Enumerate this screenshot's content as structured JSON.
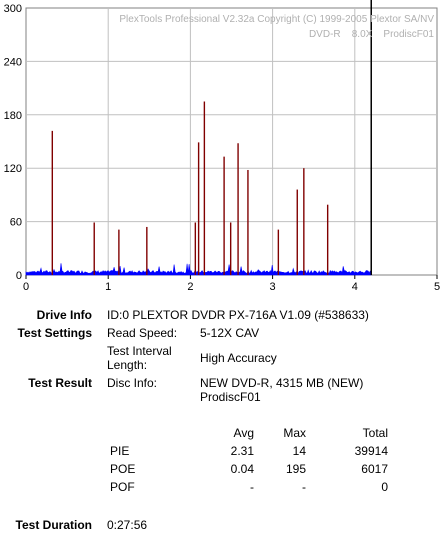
{
  "chart_data": {
    "type": "bar",
    "watermark_lines": [
      "PlexTools Professional V2.32a Copyright (C) 1999-2005 Plextor SA/NV",
      "DVD-R    8.0X    ProdiscF01"
    ],
    "x_ticks": [
      "0",
      "1",
      "2",
      "3",
      "4",
      "5"
    ],
    "y_ticks": [
      "0",
      "60",
      "120",
      "180",
      "240",
      "300"
    ],
    "xlim": [
      0,
      5
    ],
    "ylim": [
      0,
      300
    ],
    "grid": true,
    "end_marker_x": 4.2,
    "colors": {
      "pie": "#0000ff",
      "po": "#800000",
      "end_marker": "#000000",
      "grid": "#c0c0c0"
    },
    "po_spikes": [
      {
        "x": 0.32,
        "y": 162
      },
      {
        "x": 0.83,
        "y": 59
      },
      {
        "x": 1.13,
        "y": 51
      },
      {
        "x": 1.47,
        "y": 54
      },
      {
        "x": 2.06,
        "y": 59
      },
      {
        "x": 2.1,
        "y": 149
      },
      {
        "x": 2.17,
        "y": 195
      },
      {
        "x": 2.41,
        "y": 133
      },
      {
        "x": 2.49,
        "y": 59
      },
      {
        "x": 2.58,
        "y": 148
      },
      {
        "x": 2.7,
        "y": 118
      },
      {
        "x": 3.07,
        "y": 51
      },
      {
        "x": 3.3,
        "y": 96
      },
      {
        "x": 3.38,
        "y": 120
      },
      {
        "x": 3.67,
        "y": 79
      }
    ],
    "pie_avg": 2.31,
    "pie_max": 14
  },
  "info": {
    "drive_label": "Drive Info",
    "drive_value": "ID:0 PLEXTOR DVDR PX-716A V1.09 (#538633)",
    "settings_label": "Test Settings",
    "read_speed_key": "Read Speed:",
    "read_speed_value": "5-12X CAV",
    "interval_key_1": "Test Interval",
    "interval_key_2": "Length:",
    "interval_value": "High Accuracy",
    "result_label": "Test Result",
    "disc_info_key": "Disc Info:",
    "disc_info_value_1": "NEW DVD-R, 4315 MB (NEW)",
    "disc_info_value_2": "ProdiscF01",
    "duration_label": "Test Duration",
    "duration_value": "0:27:56"
  },
  "stats": {
    "headers": [
      "Avg",
      "Max",
      "Total"
    ],
    "rows": [
      {
        "name": "PIE",
        "avg": "2.31",
        "max": "14",
        "total": "39914"
      },
      {
        "name": "POE",
        "avg": "0.04",
        "max": "195",
        "total": "6017"
      },
      {
        "name": "POF",
        "avg": "-",
        "max": "-",
        "total": "0"
      }
    ]
  }
}
